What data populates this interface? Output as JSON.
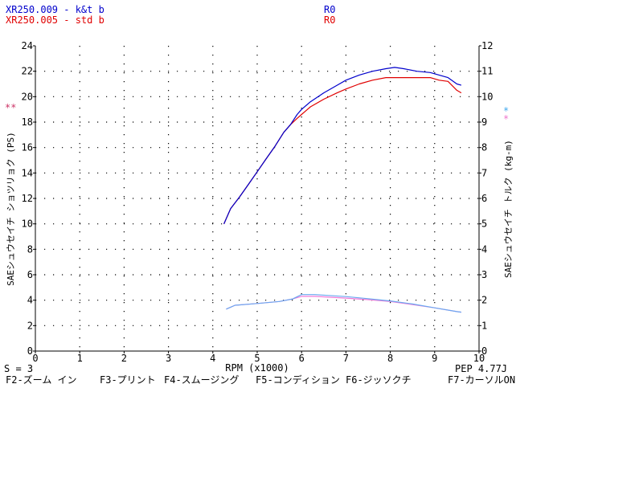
{
  "header": {
    "run1_label": "XR250.009 - k&t b",
    "run1_r": "R0",
    "run2_label": "XR250.005 - std b",
    "run2_r": "R0"
  },
  "footer": {
    "smoothing": "S = 3",
    "pep": "PEP 4.77J",
    "keys": [
      "F2-ズーム イン",
      "F3-プリント",
      "F4-スムージング",
      "F5-コンディション",
      "F6-ジッソクチ",
      "F7-カーソルON"
    ]
  },
  "markers": {
    "left": "**",
    "right_top": "*",
    "right_bottom": "*"
  },
  "colors": {
    "run1_power": "#0000cc",
    "run2_power": "#e00000",
    "run1_torque": "#6aa8f0",
    "run2_torque": "#f07ad8",
    "grid": "#000000"
  },
  "chart_data": {
    "type": "line",
    "xlabel": "RPM (x1000)",
    "ylabel_left": "SAEシュウセイチ ショツリョク (PS)",
    "ylabel_right": "SAEシュウセイチ トルク (kg-m)",
    "xlim": [
      0,
      10
    ],
    "ylim_left": [
      0,
      24
    ],
    "ylim_right": [
      0,
      12
    ],
    "x_ticks": [
      "0",
      "1",
      "2",
      "3",
      "4",
      "5",
      "6",
      "7",
      "8",
      "9",
      "10"
    ],
    "y_left_ticks": [
      "0",
      "2",
      "4",
      "6",
      "8",
      "10",
      "12",
      "14",
      "16",
      "18",
      "20",
      "22",
      "24"
    ],
    "y_right_ticks": [
      "0",
      "1",
      "2",
      "3",
      "4",
      "5",
      "6",
      "7",
      "8",
      "9",
      "10",
      "11",
      "12"
    ],
    "grid": true,
    "series": [
      {
        "name": "XR250.009 - k&t b",
        "axis": "left",
        "x": [
          4.25,
          4.4,
          4.6,
          4.8,
          5.0,
          5.2,
          5.4,
          5.6,
          5.75,
          5.9,
          6.0,
          6.2,
          6.5,
          6.8,
          7.0,
          7.3,
          7.6,
          7.9,
          8.1,
          8.3,
          8.6,
          8.9,
          9.1,
          9.3,
          9.5,
          9.6
        ],
        "y": [
          10.0,
          11.2,
          12.1,
          13.1,
          14.1,
          15.1,
          16.1,
          17.2,
          17.8,
          18.6,
          19.0,
          19.6,
          20.3,
          20.9,
          21.3,
          21.7,
          22.0,
          22.2,
          22.3,
          22.2,
          22.0,
          21.9,
          21.7,
          21.5,
          21.0,
          20.9
        ]
      },
      {
        "name": "XR250.005 - std b",
        "axis": "left",
        "x": [
          4.25,
          4.4,
          4.6,
          4.8,
          5.0,
          5.2,
          5.4,
          5.6,
          5.75,
          5.9,
          6.0,
          6.2,
          6.5,
          6.8,
          7.0,
          7.3,
          7.6,
          7.9,
          8.1,
          8.3,
          8.6,
          8.9,
          9.1,
          9.3,
          9.5,
          9.6
        ],
        "y": [
          10.0,
          11.2,
          12.1,
          13.1,
          14.1,
          15.1,
          16.1,
          17.2,
          17.8,
          18.3,
          18.6,
          19.2,
          19.8,
          20.3,
          20.6,
          21.0,
          21.3,
          21.5,
          21.5,
          21.5,
          21.5,
          21.5,
          21.3,
          21.2,
          20.5,
          20.3
        ]
      },
      {
        "name": "XR250.009 - k&t b torque",
        "axis": "right",
        "x": [
          4.3,
          4.5,
          5.0,
          5.5,
          5.8,
          6.0,
          6.3,
          7.0,
          7.5,
          8.0,
          8.5,
          9.0,
          9.5,
          9.6
        ],
        "y": [
          1.65,
          1.8,
          1.87,
          1.95,
          2.05,
          2.22,
          2.22,
          2.14,
          2.06,
          1.97,
          1.85,
          1.7,
          1.55,
          1.53
        ]
      },
      {
        "name": "XR250.005 - std b torque",
        "axis": "right",
        "x": [
          4.3,
          4.5,
          5.0,
          5.5,
          5.8,
          6.0,
          6.3,
          7.0,
          7.5,
          8.0,
          8.5,
          9.0,
          9.5,
          9.6
        ],
        "y": [
          1.65,
          1.8,
          1.87,
          1.95,
          2.05,
          2.15,
          2.15,
          2.08,
          2.02,
          1.95,
          1.83,
          1.7,
          1.55,
          1.53
        ]
      }
    ]
  }
}
